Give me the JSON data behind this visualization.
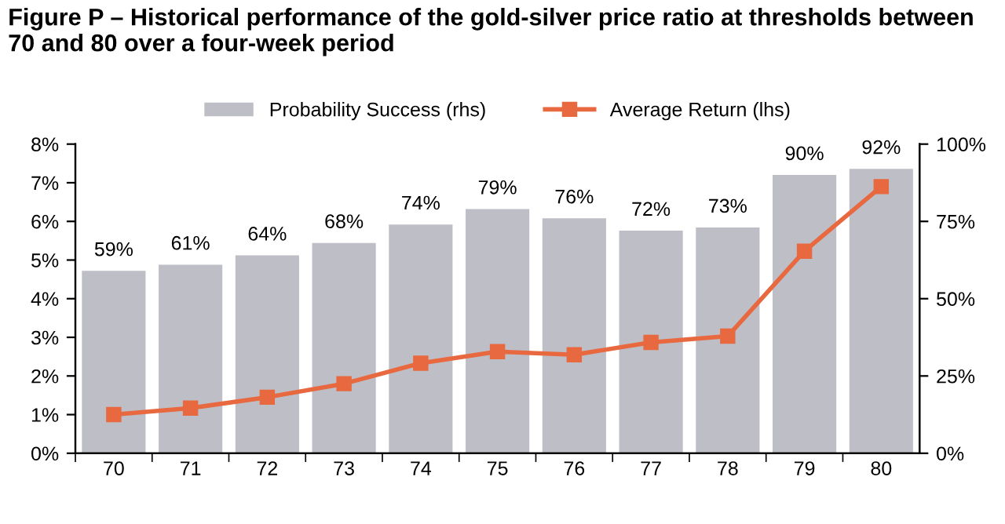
{
  "chart_data": {
    "type": "bar",
    "title": "Figure P – Historical performance of the gold-silver price ratio at thresholds between 70 and 80 over a four-week period",
    "categories": [
      "70",
      "71",
      "72",
      "73",
      "74",
      "75",
      "76",
      "77",
      "78",
      "79",
      "80"
    ],
    "series": [
      {
        "name": "Probability Success (rhs)",
        "axis": "y2",
        "color": "#bebec6",
        "values": [
          59,
          61,
          64,
          68,
          74,
          79,
          76,
          72,
          73,
          90,
          92
        ],
        "value_labels": [
          "59%",
          "61%",
          "64%",
          "68%",
          "74%",
          "79%",
          "76%",
          "72%",
          "73%",
          "90%",
          "92%"
        ]
      },
      {
        "name": "Average Return (lhs)",
        "type": "line",
        "color": "#e8693f",
        "marker": "square",
        "values": [
          1.0,
          1.17,
          1.45,
          1.8,
          2.33,
          2.63,
          2.55,
          2.87,
          3.03,
          5.23,
          6.9
        ]
      }
    ],
    "ylim": [
      0,
      8
    ],
    "yticks": [
      {
        "value": 0,
        "label": "0%"
      },
      {
        "value": 1,
        "label": "1%"
      },
      {
        "value": 2,
        "label": "2%"
      },
      {
        "value": 3,
        "label": "3%"
      },
      {
        "value": 4,
        "label": "4%"
      },
      {
        "value": 5,
        "label": "5%"
      },
      {
        "value": 6,
        "label": "6%"
      },
      {
        "value": 7,
        "label": "7%"
      },
      {
        "value": 8,
        "label": "8%"
      }
    ],
    "y2lim": [
      0,
      100
    ],
    "y2ticks": [
      {
        "value": 0,
        "label": "0%"
      },
      {
        "value": 25,
        "label": "25%"
      },
      {
        "value": 50,
        "label": "50%"
      },
      {
        "value": 75,
        "label": "75%"
      },
      {
        "value": 100,
        "label": "100%"
      }
    ],
    "legend": "top",
    "grid": false
  }
}
